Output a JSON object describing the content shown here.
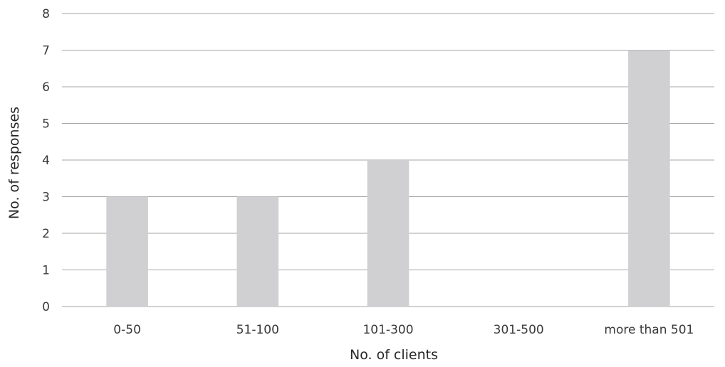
{
  "chart_data": {
    "type": "bar",
    "title": "",
    "xlabel": "No. of clients",
    "ylabel": "No. of responses",
    "categories": [
      "0-50",
      "51-100",
      "101-300",
      "301-500",
      "more than 501"
    ],
    "values": [
      3,
      3,
      4,
      0,
      7
    ],
    "ylim": [
      0,
      8
    ],
    "yticks": [
      0,
      1,
      2,
      3,
      4,
      5,
      6,
      7,
      8
    ],
    "grid": true,
    "legend": "none",
    "bar_color": "#d0d0d2",
    "grid_color": "#a6a6a6"
  }
}
